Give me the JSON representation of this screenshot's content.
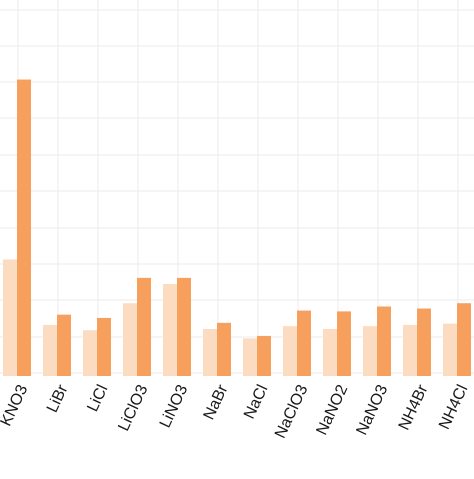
{
  "chart_data": {
    "type": "bar",
    "categories": [
      "KNO3",
      "LiBr",
      "LiCl",
      "LiClO3",
      "LiNO3",
      "NaBr",
      "NaCl",
      "NaClO3",
      "NaNO2",
      "NaNO3",
      "NH4Br",
      "NH4Cl"
    ],
    "series": [
      {
        "values": [
          28.5,
          12.5,
          11.2,
          17.8,
          22.5,
          11.5,
          9.2,
          12.2,
          11.5,
          12.2,
          12.5,
          12.8
        ]
      },
      {
        "values": [
          72.5,
          15.0,
          14.2,
          24.0,
          24.0,
          13.0,
          9.8,
          16.0,
          15.8,
          17.0,
          16.5,
          17.8
        ]
      }
    ],
    "ylim": [
      0,
      90
    ],
    "grid": true,
    "colors": [
      "#fbdcc1",
      "#f79f5c"
    ]
  }
}
